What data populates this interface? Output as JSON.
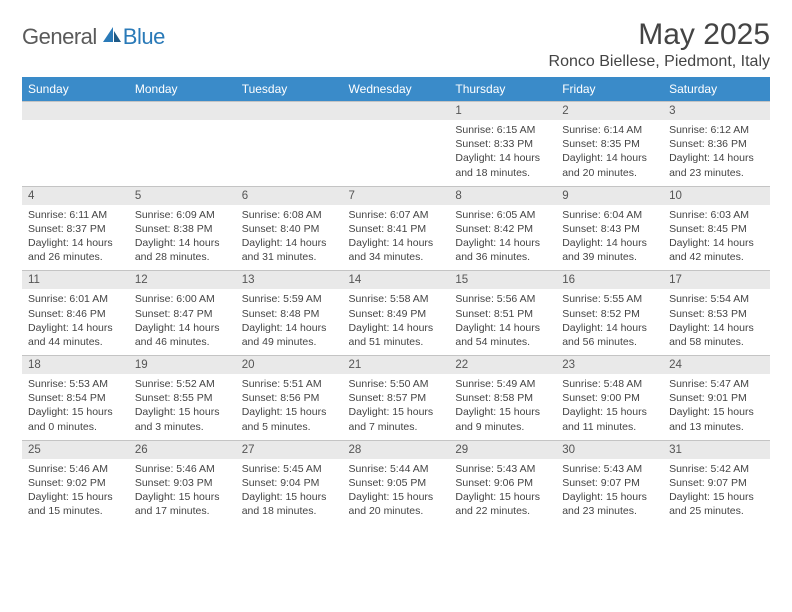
{
  "colors": {
    "header_bg": "#3a8bc9",
    "header_text": "#ffffff",
    "daynum_bg": "#e9e9e9",
    "border": "#c4c4c4",
    "body_text": "#444444",
    "logo_gray": "#5a5a5a",
    "logo_blue": "#2a7ab8"
  },
  "typography": {
    "title_fontsize": 30,
    "location_fontsize": 16,
    "weekday_fontsize": 12,
    "daynum_fontsize": 11.5,
    "info_fontsize": 10.5
  },
  "logo": {
    "general": "General",
    "blue": "Blue"
  },
  "title": {
    "month": "May 2025",
    "location": "Ronco Biellese, Piedmont, Italy"
  },
  "weekdays": [
    "Sunday",
    "Monday",
    "Tuesday",
    "Wednesday",
    "Thursday",
    "Friday",
    "Saturday"
  ],
  "weeks": [
    [
      null,
      null,
      null,
      null,
      {
        "n": "1",
        "sr": "Sunrise: 6:15 AM",
        "ss": "Sunset: 8:33 PM",
        "d1": "Daylight: 14 hours",
        "d2": "and 18 minutes."
      },
      {
        "n": "2",
        "sr": "Sunrise: 6:14 AM",
        "ss": "Sunset: 8:35 PM",
        "d1": "Daylight: 14 hours",
        "d2": "and 20 minutes."
      },
      {
        "n": "3",
        "sr": "Sunrise: 6:12 AM",
        "ss": "Sunset: 8:36 PM",
        "d1": "Daylight: 14 hours",
        "d2": "and 23 minutes."
      }
    ],
    [
      {
        "n": "4",
        "sr": "Sunrise: 6:11 AM",
        "ss": "Sunset: 8:37 PM",
        "d1": "Daylight: 14 hours",
        "d2": "and 26 minutes."
      },
      {
        "n": "5",
        "sr": "Sunrise: 6:09 AM",
        "ss": "Sunset: 8:38 PM",
        "d1": "Daylight: 14 hours",
        "d2": "and 28 minutes."
      },
      {
        "n": "6",
        "sr": "Sunrise: 6:08 AM",
        "ss": "Sunset: 8:40 PM",
        "d1": "Daylight: 14 hours",
        "d2": "and 31 minutes."
      },
      {
        "n": "7",
        "sr": "Sunrise: 6:07 AM",
        "ss": "Sunset: 8:41 PM",
        "d1": "Daylight: 14 hours",
        "d2": "and 34 minutes."
      },
      {
        "n": "8",
        "sr": "Sunrise: 6:05 AM",
        "ss": "Sunset: 8:42 PM",
        "d1": "Daylight: 14 hours",
        "d2": "and 36 minutes."
      },
      {
        "n": "9",
        "sr": "Sunrise: 6:04 AM",
        "ss": "Sunset: 8:43 PM",
        "d1": "Daylight: 14 hours",
        "d2": "and 39 minutes."
      },
      {
        "n": "10",
        "sr": "Sunrise: 6:03 AM",
        "ss": "Sunset: 8:45 PM",
        "d1": "Daylight: 14 hours",
        "d2": "and 42 minutes."
      }
    ],
    [
      {
        "n": "11",
        "sr": "Sunrise: 6:01 AM",
        "ss": "Sunset: 8:46 PM",
        "d1": "Daylight: 14 hours",
        "d2": "and 44 minutes."
      },
      {
        "n": "12",
        "sr": "Sunrise: 6:00 AM",
        "ss": "Sunset: 8:47 PM",
        "d1": "Daylight: 14 hours",
        "d2": "and 46 minutes."
      },
      {
        "n": "13",
        "sr": "Sunrise: 5:59 AM",
        "ss": "Sunset: 8:48 PM",
        "d1": "Daylight: 14 hours",
        "d2": "and 49 minutes."
      },
      {
        "n": "14",
        "sr": "Sunrise: 5:58 AM",
        "ss": "Sunset: 8:49 PM",
        "d1": "Daylight: 14 hours",
        "d2": "and 51 minutes."
      },
      {
        "n": "15",
        "sr": "Sunrise: 5:56 AM",
        "ss": "Sunset: 8:51 PM",
        "d1": "Daylight: 14 hours",
        "d2": "and 54 minutes."
      },
      {
        "n": "16",
        "sr": "Sunrise: 5:55 AM",
        "ss": "Sunset: 8:52 PM",
        "d1": "Daylight: 14 hours",
        "d2": "and 56 minutes."
      },
      {
        "n": "17",
        "sr": "Sunrise: 5:54 AM",
        "ss": "Sunset: 8:53 PM",
        "d1": "Daylight: 14 hours",
        "d2": "and 58 minutes."
      }
    ],
    [
      {
        "n": "18",
        "sr": "Sunrise: 5:53 AM",
        "ss": "Sunset: 8:54 PM",
        "d1": "Daylight: 15 hours",
        "d2": "and 0 minutes."
      },
      {
        "n": "19",
        "sr": "Sunrise: 5:52 AM",
        "ss": "Sunset: 8:55 PM",
        "d1": "Daylight: 15 hours",
        "d2": "and 3 minutes."
      },
      {
        "n": "20",
        "sr": "Sunrise: 5:51 AM",
        "ss": "Sunset: 8:56 PM",
        "d1": "Daylight: 15 hours",
        "d2": "and 5 minutes."
      },
      {
        "n": "21",
        "sr": "Sunrise: 5:50 AM",
        "ss": "Sunset: 8:57 PM",
        "d1": "Daylight: 15 hours",
        "d2": "and 7 minutes."
      },
      {
        "n": "22",
        "sr": "Sunrise: 5:49 AM",
        "ss": "Sunset: 8:58 PM",
        "d1": "Daylight: 15 hours",
        "d2": "and 9 minutes."
      },
      {
        "n": "23",
        "sr": "Sunrise: 5:48 AM",
        "ss": "Sunset: 9:00 PM",
        "d1": "Daylight: 15 hours",
        "d2": "and 11 minutes."
      },
      {
        "n": "24",
        "sr": "Sunrise: 5:47 AM",
        "ss": "Sunset: 9:01 PM",
        "d1": "Daylight: 15 hours",
        "d2": "and 13 minutes."
      }
    ],
    [
      {
        "n": "25",
        "sr": "Sunrise: 5:46 AM",
        "ss": "Sunset: 9:02 PM",
        "d1": "Daylight: 15 hours",
        "d2": "and 15 minutes."
      },
      {
        "n": "26",
        "sr": "Sunrise: 5:46 AM",
        "ss": "Sunset: 9:03 PM",
        "d1": "Daylight: 15 hours",
        "d2": "and 17 minutes."
      },
      {
        "n": "27",
        "sr": "Sunrise: 5:45 AM",
        "ss": "Sunset: 9:04 PM",
        "d1": "Daylight: 15 hours",
        "d2": "and 18 minutes."
      },
      {
        "n": "28",
        "sr": "Sunrise: 5:44 AM",
        "ss": "Sunset: 9:05 PM",
        "d1": "Daylight: 15 hours",
        "d2": "and 20 minutes."
      },
      {
        "n": "29",
        "sr": "Sunrise: 5:43 AM",
        "ss": "Sunset: 9:06 PM",
        "d1": "Daylight: 15 hours",
        "d2": "and 22 minutes."
      },
      {
        "n": "30",
        "sr": "Sunrise: 5:43 AM",
        "ss": "Sunset: 9:07 PM",
        "d1": "Daylight: 15 hours",
        "d2": "and 23 minutes."
      },
      {
        "n": "31",
        "sr": "Sunrise: 5:42 AM",
        "ss": "Sunset: 9:07 PM",
        "d1": "Daylight: 15 hours",
        "d2": "and 25 minutes."
      }
    ]
  ]
}
